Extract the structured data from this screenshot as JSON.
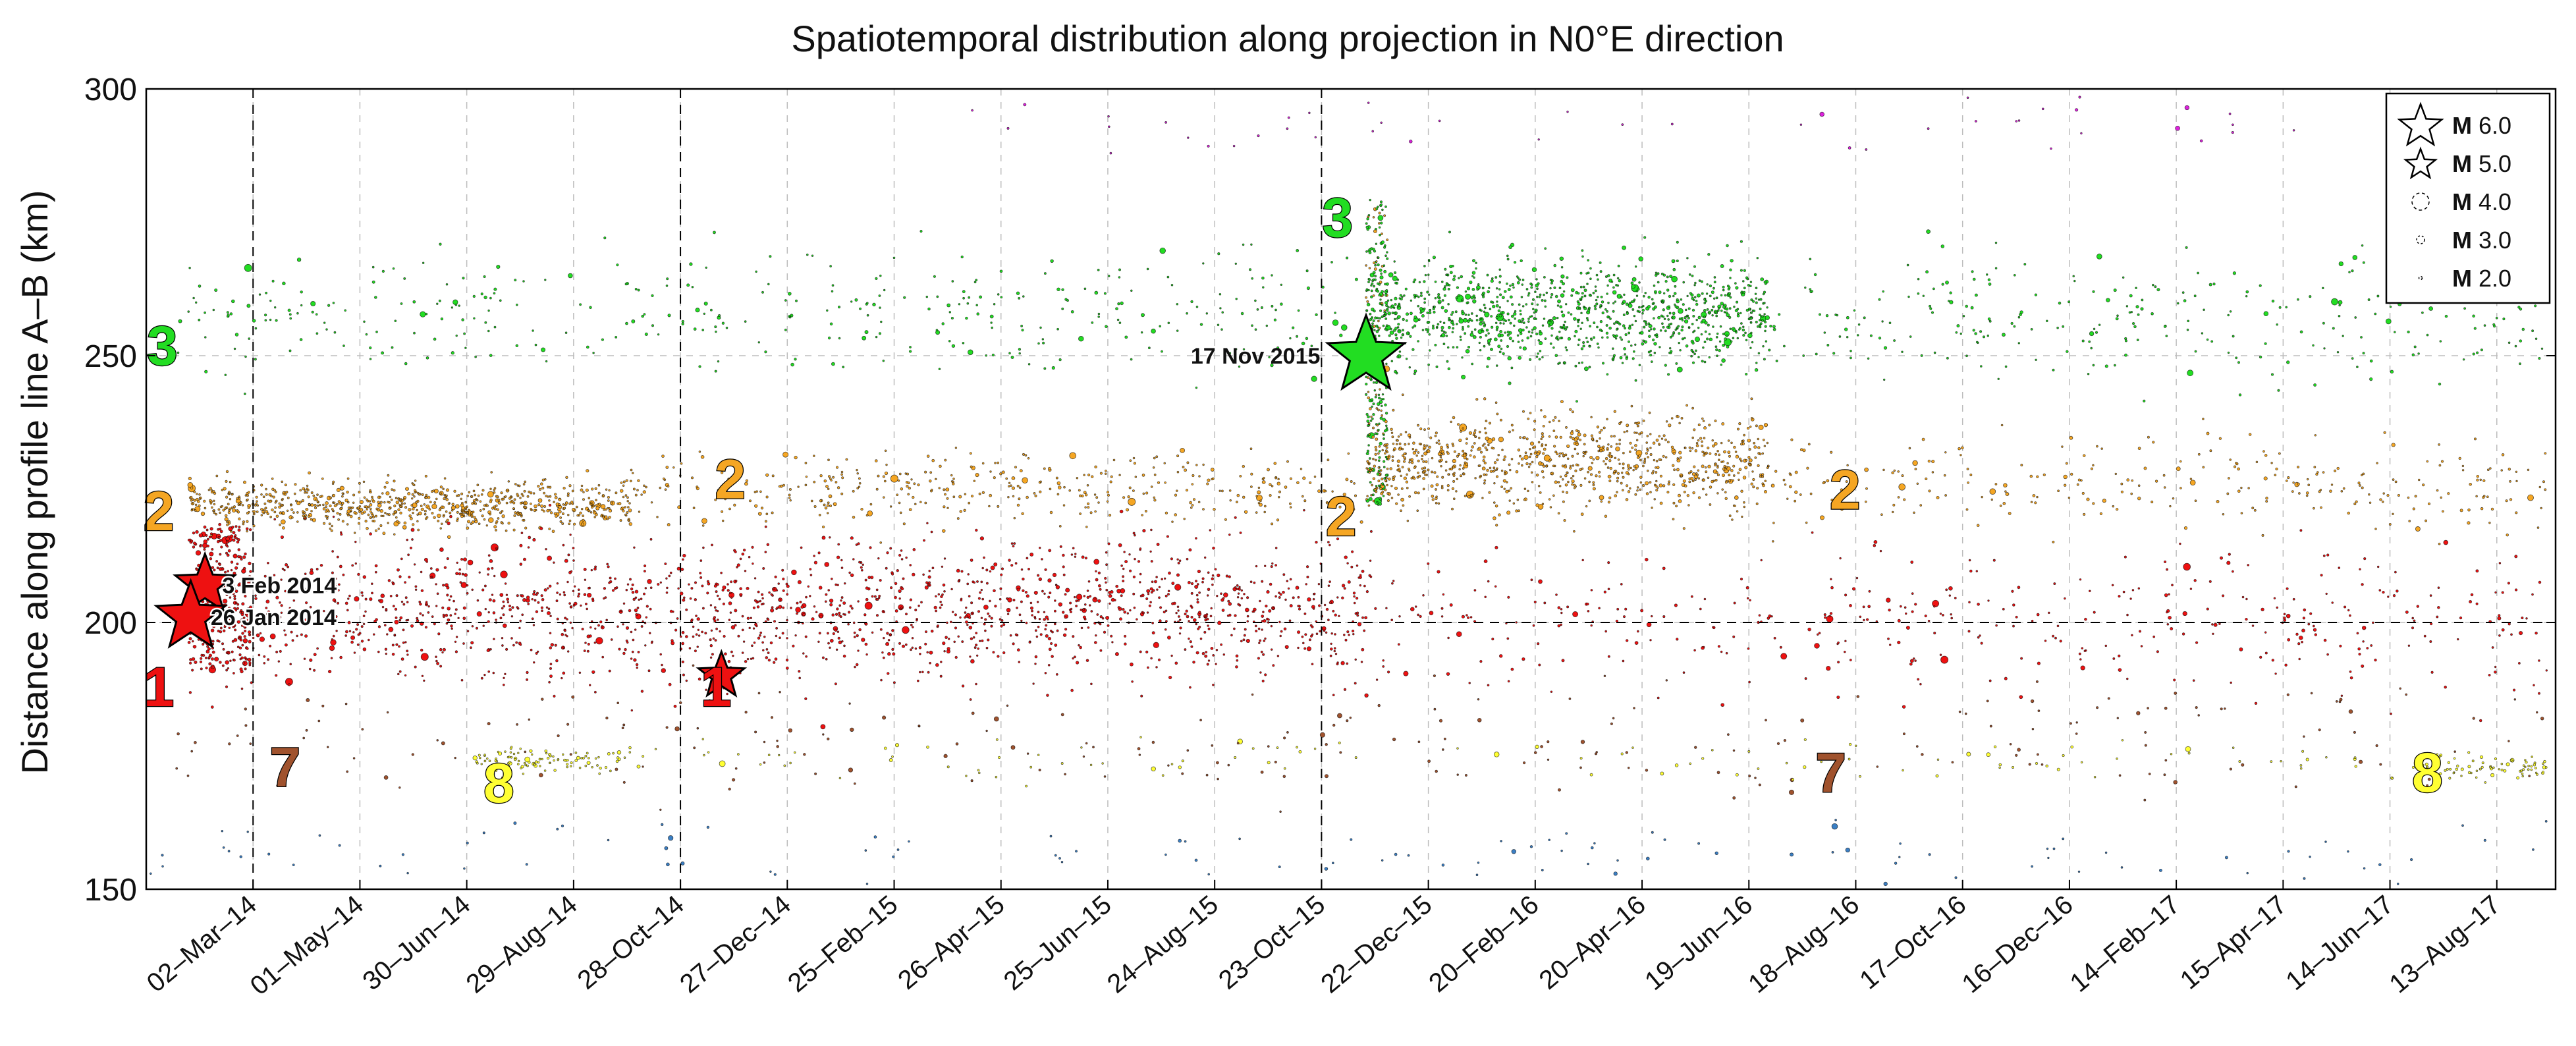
{
  "chart_data": {
    "type": "scatter",
    "title": "Spatiotemporal distribution along projection in N0°E direction",
    "xlabel": "",
    "ylabel": "Distance along profile line A–B (km)",
    "ylim": [
      150,
      300
    ],
    "yticks": [
      150,
      200,
      250,
      300
    ],
    "xlim": [
      "2014-01-01",
      "2017-09-15"
    ],
    "x_tick_labels": [
      "02–Mar–14",
      "01–May–14",
      "30–Jun–14",
      "29–Aug–14",
      "28–Oct–14",
      "27–Dec–14",
      "25–Feb–15",
      "26–Apr–15",
      "25–Jun–15",
      "24–Aug–15",
      "23–Oct–15",
      "22–Dec–15",
      "20–Feb–16",
      "20–Apr–16",
      "19–Jun–16",
      "18–Aug–16",
      "17–Oct–16",
      "16–Dec–16",
      "14–Feb–17",
      "15–Apr–17",
      "14–Jun–17",
      "13–Aug–17"
    ],
    "x_tick_dates": [
      "2014-03-02",
      "2014-05-01",
      "2014-06-30",
      "2014-08-29",
      "2014-10-28",
      "2014-12-27",
      "2015-02-25",
      "2015-04-26",
      "2015-06-25",
      "2015-08-24",
      "2015-10-23",
      "2015-12-22",
      "2016-02-20",
      "2016-04-20",
      "2016-06-19",
      "2016-08-18",
      "2016-10-17",
      "2016-12-16",
      "2017-02-14",
      "2017-04-15",
      "2017-06-14",
      "2017-08-13"
    ],
    "grid": true,
    "reference_lines": {
      "horizontal_y": [
        200
      ],
      "vertical_dates": [
        "2014-03-02",
        "2014-10-28",
        "2015-10-23"
      ]
    },
    "legend_position": "top-right",
    "legend": [
      {
        "prefix": "M",
        "label": "6.0",
        "magnitude": 6.0
      },
      {
        "prefix": "M",
        "label": "5.0",
        "magnitude": 5.0
      },
      {
        "prefix": "M",
        "label": "4.0",
        "magnitude": 4.0
      },
      {
        "prefix": "M",
        "label": "3.0",
        "magnitude": 3.0
      },
      {
        "prefix": "M",
        "label": "2.0",
        "magnitude": 2.0
      }
    ],
    "colors": {
      "cluster_1": "#ee1111",
      "cluster_2": "#f5a623",
      "cluster_3": "#22dd22",
      "cluster_7": "#a0522d",
      "cluster_8": "#ffff33",
      "other_blue": "#3b7fc4",
      "other_magenta": "#dd22dd",
      "background": "#ffffff"
    },
    "cluster_labels": [
      {
        "text": "1",
        "date": "2014-01-08",
        "y": 188,
        "cluster": "cluster_1"
      },
      {
        "text": "1",
        "date": "2014-11-17",
        "y": 188,
        "cluster": "cluster_1"
      },
      {
        "text": "2",
        "date": "2014-01-08",
        "y": 221,
        "cluster": "cluster_2"
      },
      {
        "text": "2",
        "date": "2014-11-25",
        "y": 227,
        "cluster": "cluster_2"
      },
      {
        "text": "2",
        "date": "2015-11-03",
        "y": 220,
        "cluster": "cluster_2"
      },
      {
        "text": "2",
        "date": "2016-08-12",
        "y": 225,
        "cluster": "cluster_2"
      },
      {
        "text": "3",
        "date": "2014-01-10",
        "y": 252,
        "cluster": "cluster_3"
      },
      {
        "text": "3",
        "date": "2015-11-01",
        "y": 276,
        "cluster": "cluster_3"
      },
      {
        "text": "7",
        "date": "2014-03-20",
        "y": 173,
        "cluster": "cluster_7"
      },
      {
        "text": "7",
        "date": "2016-08-04",
        "y": 172,
        "cluster": "cluster_7"
      },
      {
        "text": "8",
        "date": "2014-07-18",
        "y": 170,
        "cluster": "cluster_8"
      },
      {
        "text": "8",
        "date": "2017-07-05",
        "y": 172,
        "cluster": "cluster_8"
      }
    ],
    "large_events": [
      {
        "label": "3 Feb 2014",
        "date": "2014-02-03",
        "y": 207,
        "magnitude": 5.7,
        "cluster": "cluster_1"
      },
      {
        "label": "26 Jan 2014",
        "date": "2014-01-26",
        "y": 201,
        "magnitude": 6.1,
        "cluster": "cluster_1"
      },
      {
        "label": "",
        "date": "2014-11-20",
        "y": 190,
        "magnitude": 5.0,
        "cluster": "cluster_1"
      },
      {
        "label": "17 Nov 2015",
        "date": "2015-11-17",
        "y": 250,
        "magnitude": 6.4,
        "cluster": "cluster_3"
      }
    ],
    "event_bands": [
      {
        "cluster": "cluster_1",
        "start": "2014-01-25",
        "end": "2015-11-20",
        "center": 202,
        "spread": 12,
        "count": 1800
      },
      {
        "cluster": "cluster_1",
        "start": "2015-11-20",
        "end": "2017-09-10",
        "center": 200,
        "spread": 12,
        "count": 420
      },
      {
        "cluster": "cluster_2",
        "start": "2014-01-25",
        "end": "2014-09-30",
        "center": 222,
        "spread": 4,
        "count": 800
      },
      {
        "cluster": "cluster_2",
        "start": "2014-09-30",
        "end": "2015-11-15",
        "center": 225,
        "spread": 6,
        "count": 400
      },
      {
        "cluster": "cluster_2",
        "start": "2015-11-17",
        "end": "2016-06-30",
        "center": 230,
        "spread": 8,
        "count": 900
      },
      {
        "cluster": "cluster_2",
        "start": "2016-06-30",
        "end": "2017-09-10",
        "center": 226,
        "spread": 8,
        "count": 280
      },
      {
        "cluster": "cluster_3",
        "start": "2014-01-15",
        "end": "2015-11-16",
        "center": 258,
        "spread": 10,
        "count": 380
      },
      {
        "cluster": "cluster_3",
        "start": "2015-11-17",
        "end": "2016-06-30",
        "center": 258,
        "spread": 9,
        "count": 1100
      },
      {
        "cluster": "cluster_3",
        "start": "2016-06-30",
        "end": "2017-09-10",
        "center": 257,
        "spread": 10,
        "count": 280
      },
      {
        "cluster": "cluster_7",
        "start": "2014-01-15",
        "end": "2017-09-10",
        "center": 178,
        "spread": 10,
        "count": 240
      },
      {
        "cluster": "cluster_8",
        "start": "2014-07-01",
        "end": "2014-09-30",
        "center": 174,
        "spread": 2,
        "count": 110
      },
      {
        "cluster": "cluster_8",
        "start": "2017-06-25",
        "end": "2017-09-10",
        "center": 173,
        "spread": 2,
        "count": 80
      },
      {
        "cluster": "cluster_8",
        "start": "2014-10-01",
        "end": "2017-06-20",
        "center": 174,
        "spread": 4,
        "count": 110
      },
      {
        "cluster": "other_blue",
        "start": "2014-01-01",
        "end": "2017-09-10",
        "center": 157,
        "spread": 5,
        "count": 110
      },
      {
        "cluster": "other_magenta",
        "start": "2015-03-01",
        "end": "2017-04-30",
        "center": 293,
        "spread": 5,
        "count": 45
      }
    ]
  }
}
